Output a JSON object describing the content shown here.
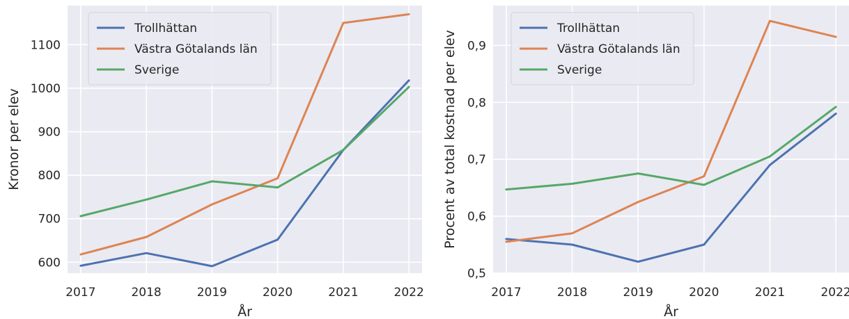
{
  "colors": {
    "Trollhättan": "#4c72b0",
    "Västra Götalands län": "#dd8452",
    "Sverige": "#55a868",
    "background": "#eaeaf2",
    "grid": "#ffffff"
  },
  "chart_data": [
    {
      "type": "line",
      "xlabel": "År",
      "ylabel": "Kronor per elev",
      "categories": [
        "2017",
        "2018",
        "2019",
        "2020",
        "2021",
        "2022"
      ],
      "x": [
        2017,
        2018,
        2019,
        2020,
        2021,
        2022
      ],
      "ylim": [
        575,
        1190
      ],
      "yticks": [
        600,
        700,
        800,
        900,
        1000,
        1100
      ],
      "ytick_labels": [
        "600",
        "700",
        "800",
        "900",
        "1000",
        "1100"
      ],
      "grid": true,
      "legend_position": "top-left",
      "series": [
        {
          "name": "Trollhättan",
          "values": [
            592,
            621,
            591,
            652,
            858,
            1018
          ]
        },
        {
          "name": "Västra Götalands län",
          "values": [
            618,
            658,
            733,
            793,
            1150,
            1170
          ]
        },
        {
          "name": "Sverige",
          "values": [
            706,
            744,
            786,
            772,
            858,
            1003
          ]
        }
      ]
    },
    {
      "type": "line",
      "xlabel": "År",
      "ylabel": "Procent av total kostnad per elev",
      "categories": [
        "2017",
        "2018",
        "2019",
        "2020",
        "2021",
        "2022"
      ],
      "x": [
        2017,
        2018,
        2019,
        2020,
        2021,
        2022
      ],
      "ylim": [
        0.5,
        0.97
      ],
      "yticks": [
        0.5,
        0.6,
        0.7,
        0.8,
        0.9
      ],
      "ytick_labels": [
        "0,5",
        "0,6",
        "0,7",
        "0,8",
        "0,9"
      ],
      "grid": true,
      "legend_position": "top-left",
      "series": [
        {
          "name": "Trollhättan",
          "values": [
            0.56,
            0.55,
            0.52,
            0.55,
            0.69,
            0.78
          ]
        },
        {
          "name": "Västra Götalands län",
          "values": [
            0.555,
            0.57,
            0.625,
            0.67,
            0.943,
            0.915
          ]
        },
        {
          "name": "Sverige",
          "values": [
            0.647,
            0.657,
            0.675,
            0.655,
            0.705,
            0.792
          ]
        }
      ]
    }
  ]
}
